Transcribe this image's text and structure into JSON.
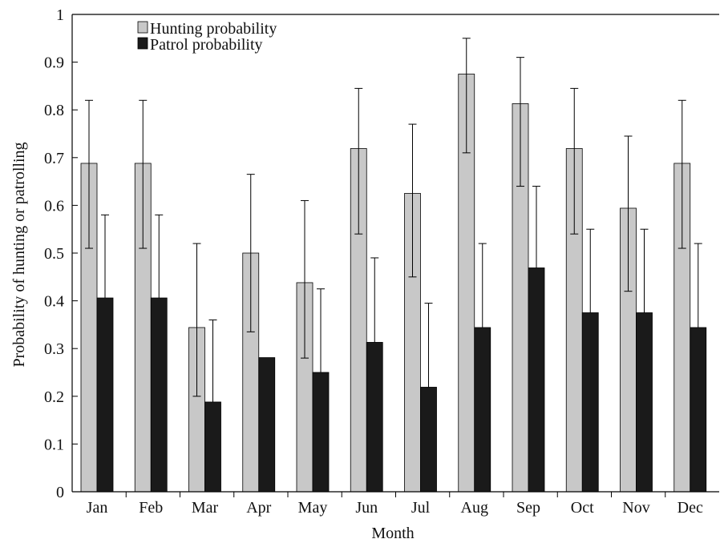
{
  "chart_data": {
    "type": "bar",
    "xlabel": "Month",
    "ylabel": "Probability of hunting or patrolling",
    "ylim": [
      0,
      1
    ],
    "yticks": [
      0,
      0.1,
      0.2,
      0.3,
      0.4,
      0.5,
      0.6,
      0.7,
      0.8,
      0.9,
      1
    ],
    "ytick_labels": [
      "0",
      "0.1",
      "0.2",
      "0.3",
      "0.4",
      "0.5",
      "0.6",
      "0.7",
      "0.8",
      "0.9",
      "1"
    ],
    "categories": [
      "Jan",
      "Feb",
      "Mar",
      "Apr",
      "May",
      "Jun",
      "Jul",
      "Aug",
      "Sep",
      "Oct",
      "Nov",
      "Dec"
    ],
    "legend_position": "top-left",
    "grid": false,
    "series": [
      {
        "name": "Hunting probability",
        "color": "#c8c8c8",
        "values": [
          0.688,
          0.688,
          0.344,
          0.5,
          0.438,
          0.719,
          0.625,
          0.875,
          0.813,
          0.719,
          0.594,
          0.688
        ],
        "error_upper": [
          0.82,
          0.82,
          0.52,
          0.665,
          0.61,
          0.845,
          0.77,
          0.95,
          0.91,
          0.845,
          0.745,
          0.82
        ],
        "error_lower": [
          0.51,
          0.51,
          0.2,
          0.335,
          0.28,
          0.54,
          0.45,
          0.71,
          0.64,
          0.54,
          0.42,
          0.51
        ]
      },
      {
        "name": "Patrol probability",
        "color": "#1a1a1a",
        "values": [
          0.406,
          0.406,
          0.188,
          0.281,
          0.25,
          0.313,
          0.219,
          0.344,
          0.469,
          0.375,
          0.375,
          0.344
        ],
        "error_upper": [
          0.58,
          0.58,
          0.36,
          null,
          0.425,
          0.49,
          0.395,
          0.52,
          0.64,
          0.55,
          0.55,
          0.52
        ],
        "error_lower": [
          null,
          null,
          null,
          null,
          null,
          null,
          null,
          null,
          null,
          null,
          null,
          null
        ]
      }
    ]
  }
}
